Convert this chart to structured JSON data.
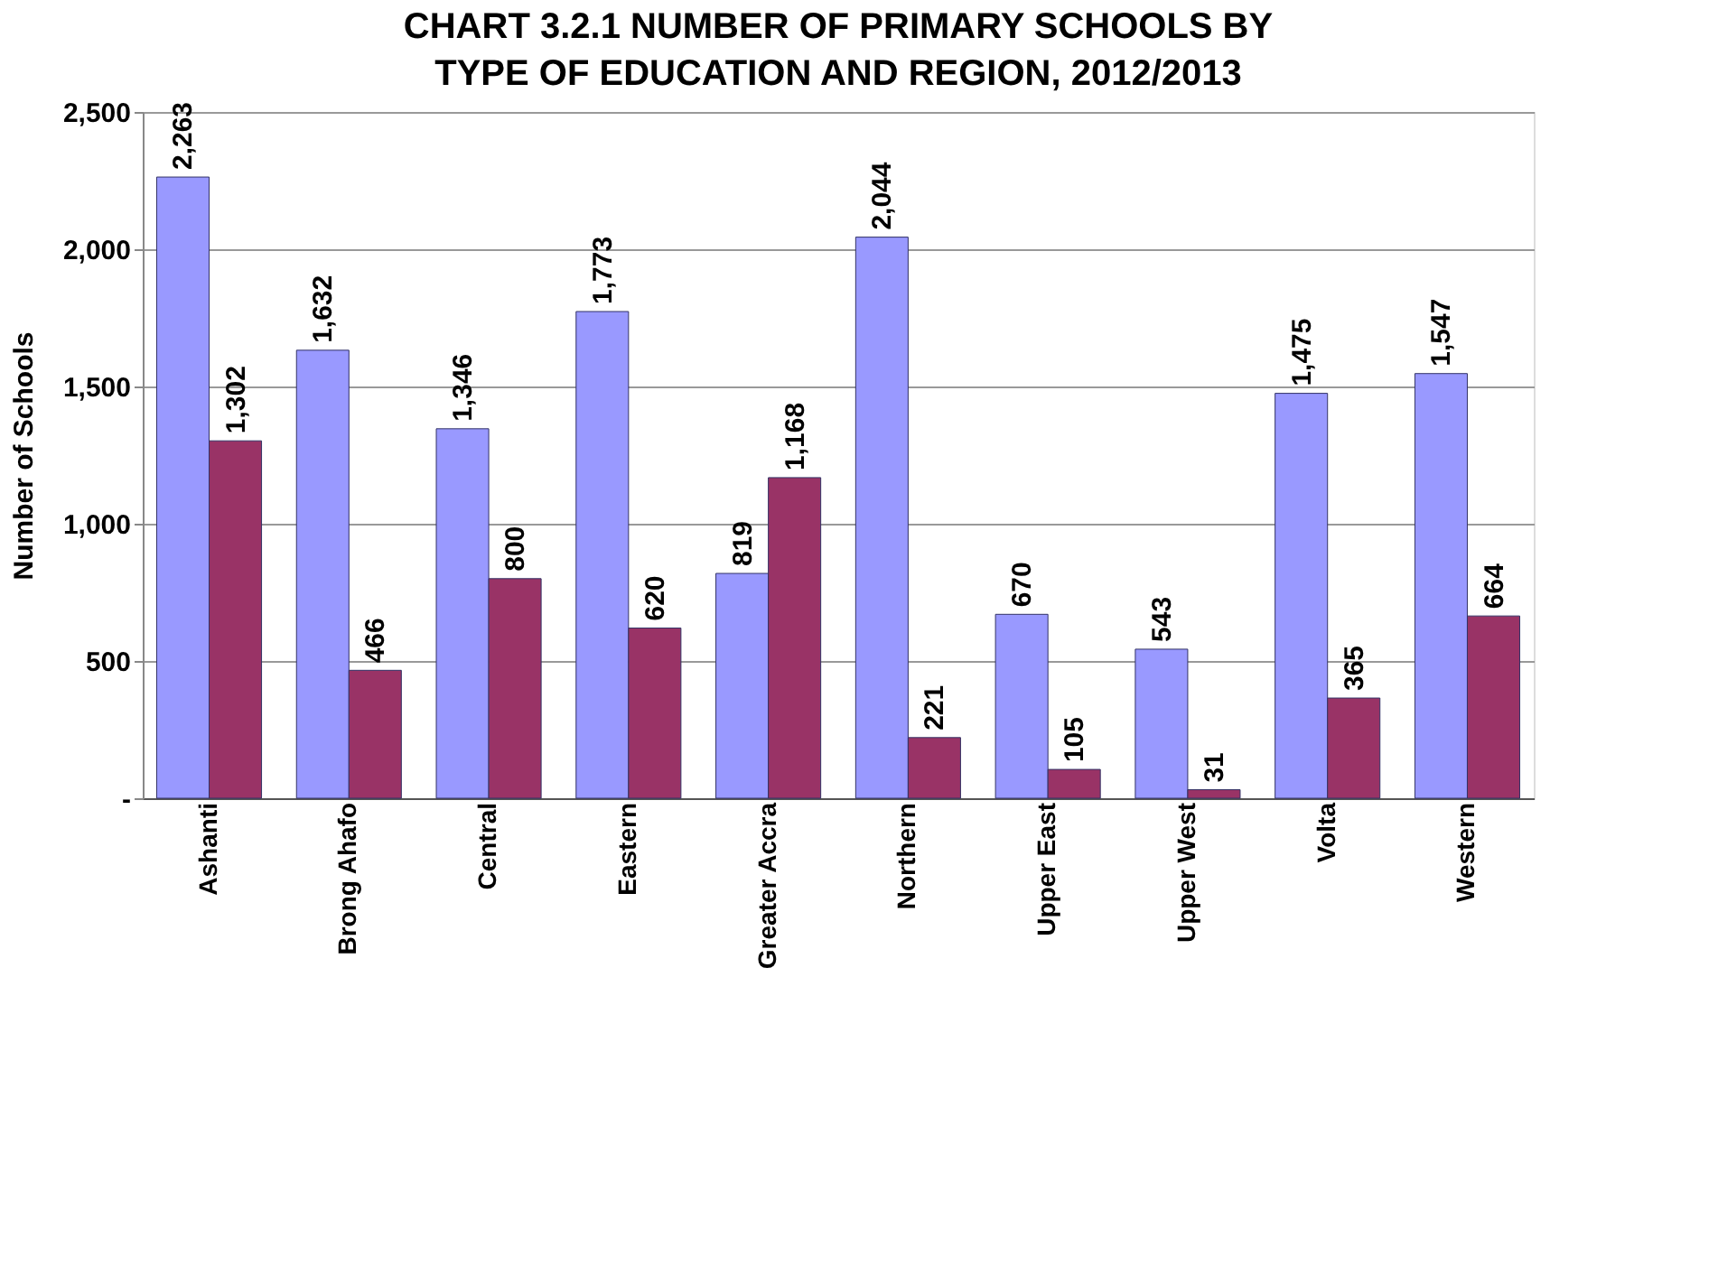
{
  "chart_data": {
    "type": "bar",
    "title": "CHART 3.2.1 NUMBER OF PRIMARY SCHOOLS BY TYPE OF EDUCATION AND REGION, 2012/2013",
    "ylabel": "Number of Schools",
    "categories": [
      "Ashanti",
      "Brong Ahafo",
      "Central",
      "Eastern",
      "Greater Accra",
      "Northern",
      "Upper East",
      "Upper West",
      "Volta",
      "Western"
    ],
    "series": [
      {
        "color": "#9999ff",
        "values": [
          2263,
          1632,
          1346,
          1773,
          819,
          2044,
          670,
          543,
          1475,
          1547
        ],
        "value_labels": [
          "2,263",
          "1,632",
          "1,346",
          "1,773",
          "819",
          "2,044",
          "670",
          "543",
          "1,475",
          "1,547"
        ]
      },
      {
        "color": "#993366",
        "values": [
          1302,
          466,
          800,
          620,
          1168,
          221,
          105,
          31,
          365,
          664
        ],
        "value_labels": [
          "1,302",
          "466",
          "800",
          "620",
          "1,168",
          "221",
          "105",
          "31",
          "365",
          "664"
        ]
      }
    ],
    "ylim": [
      0,
      2500
    ],
    "yticks": [
      {
        "value": 0,
        "label": "-"
      },
      {
        "value": 500,
        "label": "500"
      },
      {
        "value": 1000,
        "label": "1,000"
      },
      {
        "value": 1500,
        "label": "1,500"
      },
      {
        "value": 2000,
        "label": "2,000"
      },
      {
        "value": 2500,
        "label": "2,500"
      }
    ],
    "grid": "y"
  }
}
